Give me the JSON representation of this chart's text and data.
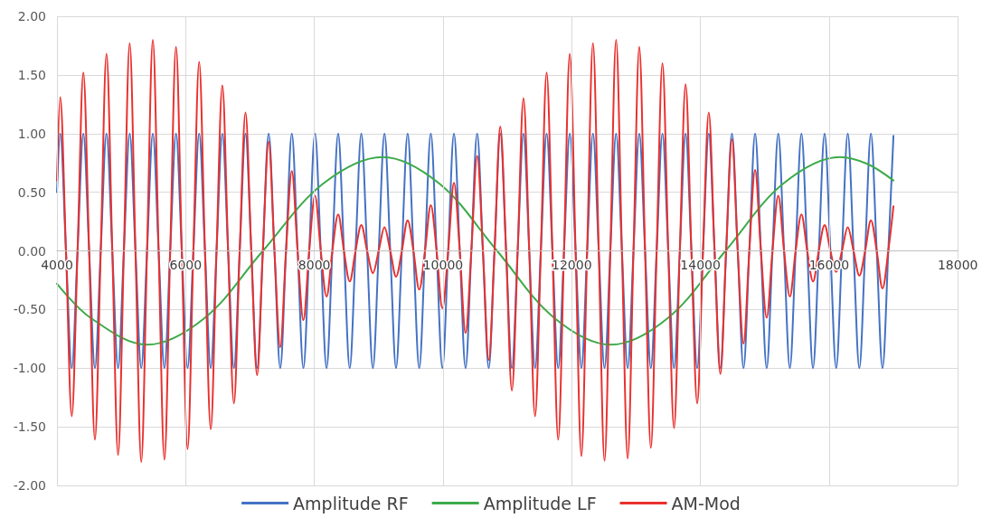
{
  "chart_data": {
    "type": "line",
    "x": [
      4000,
      4050,
      4140,
      4230,
      4320,
      4410,
      4500,
      4590,
      4680,
      4770,
      4860,
      4950,
      5040,
      5130,
      5220,
      5310,
      5400,
      5490,
      5580,
      5670,
      5760,
      5850,
      5940,
      6030,
      6120,
      6210,
      6300,
      6390,
      6480,
      6570,
      6660,
      6750,
      6840,
      6930,
      7020,
      7110,
      7200,
      7290,
      7380,
      7470,
      7560,
      7650,
      7740,
      7830,
      7920,
      8010,
      8100,
      8190,
      8280,
      8370,
      8460,
      8550,
      8640,
      8730,
      8820,
      8910,
      9000,
      9090,
      9180,
      9270,
      9360,
      9450,
      9540,
      9630,
      9720,
      9810,
      9900,
      9990,
      10080,
      10170,
      10260,
      10350,
      10440,
      10530,
      10620,
      10710,
      10800,
      10890,
      10980,
      11070,
      11160,
      11250,
      11340,
      11430,
      11520,
      11610,
      11700,
      11790,
      11880,
      11970,
      12060,
      12150,
      12240,
      12330,
      12420,
      12510,
      12600,
      12690,
      12780,
      12870,
      12960,
      13050,
      13140,
      13230,
      13320,
      13410,
      13500,
      13590,
      13680,
      13770,
      13860,
      13950,
      14040,
      14130,
      14220,
      14310,
      14400,
      14490,
      14580,
      14670,
      14760,
      14850,
      14940,
      15030,
      15120,
      15210,
      15300,
      15390,
      15480,
      15570,
      15660,
      15750,
      15840,
      15930,
      16020,
      16110,
      16200,
      16290,
      16380,
      16470,
      16560,
      16650,
      16740,
      16830,
      16920,
      17000
    ],
    "series": [
      {
        "name": "Amplitude RF",
        "color": "#4472c4",
        "values": [
          0.5,
          1,
          0,
          -1,
          0,
          1,
          0,
          -1,
          0,
          1,
          0,
          -1,
          0,
          1,
          0,
          -1,
          0,
          1,
          0,
          -1,
          0,
          1,
          0,
          -1,
          0,
          1,
          0,
          -1,
          0,
          1,
          0,
          -1,
          0,
          1,
          0,
          -1,
          0,
          1,
          0,
          -1,
          0,
          1,
          0,
          -1,
          0,
          1,
          0,
          -1,
          0,
          1,
          0,
          -1,
          0,
          1,
          0,
          -1,
          0,
          1,
          0,
          -1,
          0,
          1,
          0,
          -1,
          0,
          1,
          0,
          -1,
          0,
          1,
          0,
          -1,
          0,
          1,
          0,
          -1,
          0,
          1,
          0,
          -1,
          0,
          1,
          0,
          -1,
          0,
          1,
          0,
          -1,
          0,
          1,
          0,
          -1,
          0,
          1,
          0,
          -1,
          0,
          1,
          0,
          -1,
          0,
          1,
          0,
          -1,
          0,
          1,
          0,
          -1,
          0,
          1,
          0,
          -1,
          0,
          1,
          0,
          -1,
          0,
          1,
          0,
          -1,
          0,
          1,
          0,
          -1,
          0,
          1,
          0,
          -1,
          0,
          1,
          0,
          -1,
          0,
          1,
          0,
          -1,
          0,
          1,
          0,
          -1,
          0,
          1,
          0,
          -1,
          0,
          0.98
        ]
      },
      {
        "name": "Amplitude LF",
        "color": "#3daa4a",
        "x": [
          4000,
          4520,
          5400,
          6300,
          7200,
          8130,
          9060,
          9950,
          10840,
          11725,
          12610,
          13500,
          14390,
          15280,
          16170,
          16600,
          17000
        ],
        "values": [
          -0.28,
          -0.57,
          -0.8,
          -0.57,
          0,
          0.57,
          0.8,
          0.57,
          0,
          -0.57,
          -0.8,
          -0.57,
          0,
          0.57,
          0.8,
          0.74,
          0.6
        ]
      },
      {
        "name": "AM-Mod",
        "color": "#e8312f",
        "values": [
          0.6,
          1.31,
          0,
          -1.41,
          0,
          1.52,
          0,
          -1.61,
          0,
          1.68,
          0,
          -1.74,
          0,
          1.77,
          0,
          -1.8,
          0,
          1.8,
          0,
          -1.78,
          0,
          1.74,
          0,
          -1.69,
          0,
          1.61,
          0,
          -1.52,
          0,
          1.41,
          0,
          -1.3,
          0,
          1.18,
          0,
          -1.06,
          0,
          0.93,
          0,
          -0.82,
          0,
          0.68,
          0,
          -0.59,
          0,
          0.47,
          0,
          -0.39,
          0,
          0.31,
          0,
          -0.26,
          0,
          0.22,
          0,
          -0.19,
          0,
          0.2,
          0,
          -0.22,
          0,
          0.26,
          0,
          -0.33,
          0,
          0.39,
          0,
          -0.49,
          0,
          0.58,
          0,
          -0.7,
          0,
          0.81,
          0,
          -0.93,
          0,
          1.06,
          0,
          -1.19,
          0,
          1.3,
          0,
          -1.41,
          0,
          1.52,
          0,
          -1.61,
          0,
          1.68,
          0,
          -1.75,
          0,
          1.77,
          0,
          -1.79,
          0,
          1.8,
          0,
          -1.77,
          0,
          1.74,
          0,
          -1.68,
          0,
          1.6,
          0,
          -1.51,
          0,
          1.42,
          0,
          -1.3,
          0,
          1.18,
          0,
          -1.05,
          0,
          0.95,
          0,
          -0.79,
          0,
          0.69,
          0,
          -0.57,
          0,
          0.47,
          0,
          -0.39,
          0,
          0.31,
          0,
          -0.26,
          0,
          0.22,
          0,
          -0.18,
          0,
          0.2,
          0,
          -0.21,
          0,
          0.26,
          0,
          -0.32,
          0,
          0.38
        ]
      }
    ],
    "xlim": [
      4000,
      18000
    ],
    "xticks": [
      4000,
      6000,
      8000,
      10000,
      12000,
      14000,
      16000,
      18000
    ],
    "ylim": [
      -2,
      2
    ],
    "yticks": [
      {
        "value": -2,
        "label": "-2.00"
      },
      {
        "value": -1.5,
        "label": "-1.50"
      },
      {
        "value": -1,
        "label": "-1.00"
      },
      {
        "value": -0.5,
        "label": "-0.50"
      },
      {
        "value": 0,
        "label": "0.00"
      },
      {
        "value": 0.5,
        "label": "0.50"
      },
      {
        "value": 1,
        "label": "1.00"
      },
      {
        "value": 1.5,
        "label": "1.50"
      },
      {
        "value": 2,
        "label": "2.00"
      }
    ],
    "grid": true,
    "legend": "bottom",
    "marker": "none"
  }
}
